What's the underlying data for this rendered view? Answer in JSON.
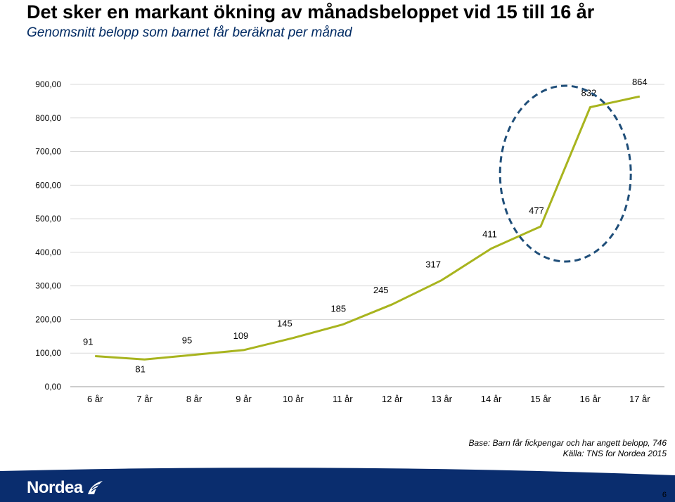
{
  "slide": {
    "title": "Det sker en markant ökning av månadsbeloppet vid 15 till 16 år",
    "subtitle": "Genomsnitt belopp som barnet får beräknat per månad",
    "note_base": "Base: Barn får fickpengar  och har angett belopp, 746",
    "note_source": "Källa: TNS for Nordea 2015",
    "page_number": "6",
    "logo_text": "Nordea"
  },
  "colors": {
    "line": "#a8b41e",
    "highlight_ellipse": "#1f4e79",
    "subtitle": "#002a63",
    "grid": "#d9d9d9",
    "footer_band": "#0a2d6e"
  },
  "chart_data": {
    "type": "line",
    "categories": [
      "6 år",
      "7 år",
      "8 år",
      "9 år",
      "10 år",
      "11 år",
      "12 år",
      "13 år",
      "14 år",
      "15 år",
      "16 år",
      "17 år"
    ],
    "values": [
      91,
      81,
      95,
      109,
      145,
      185,
      245,
      317,
      411,
      477,
      832,
      864
    ],
    "data_labels": [
      "91",
      "81",
      "95",
      "109",
      "145",
      "185",
      "245",
      "317",
      "411",
      "477",
      "832",
      "864"
    ],
    "ylim": [
      0,
      900
    ],
    "y_ticks": [
      0,
      100,
      200,
      300,
      400,
      500,
      600,
      700,
      800,
      900
    ],
    "y_tick_labels": [
      "0,00",
      "100,00",
      "200,00",
      "300,00",
      "400,00",
      "500,00",
      "600,00",
      "700,00",
      "800,00",
      "900,00"
    ],
    "grid": true,
    "legend": "none",
    "highlight": {
      "categories": [
        "15 år",
        "16 år"
      ],
      "style": "dashed ellipse"
    }
  }
}
